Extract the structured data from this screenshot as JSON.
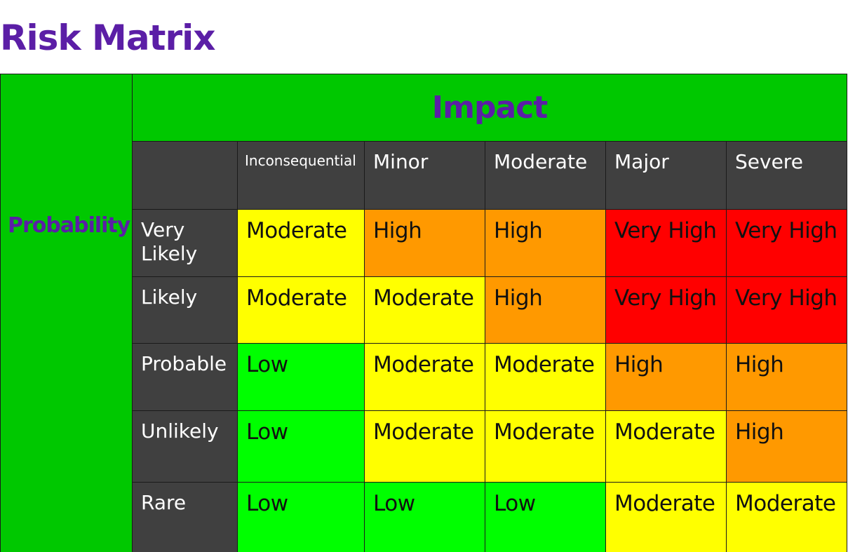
{
  "title": "Risk Matrix",
  "axis": {
    "impact": "Impact",
    "probability": "Probability"
  },
  "impact_levels": [
    "Inconsequential",
    "Minor",
    "Moderate",
    "Major",
    "Severe"
  ],
  "rows": [
    {
      "label": "Very Likely",
      "cells": [
        "Moderate",
        "High",
        "High",
        "Very High",
        "Very High"
      ]
    },
    {
      "label": "Likely",
      "cells": [
        "Moderate",
        "Moderate",
        "High",
        "Very High",
        "Very High"
      ]
    },
    {
      "label": "Probable",
      "cells": [
        "Low",
        "Moderate",
        "Moderate",
        "High",
        "High"
      ]
    },
    {
      "label": "Unlikely",
      "cells": [
        "Low",
        "Moderate",
        "Moderate",
        "Moderate",
        "High"
      ]
    },
    {
      "label": "Rare",
      "cells": [
        "Low",
        "Low",
        "Low",
        "Moderate",
        "Moderate"
      ]
    }
  ],
  "colors": {
    "title_text": "#5b1ea6",
    "axis_background": "#00c800",
    "header_background": "#404040",
    "header_text": "#ffffff",
    "Low": "#00ff00",
    "Moderate": "#ffff00",
    "High": "#ff9900",
    "Very High": "#ff0000"
  }
}
